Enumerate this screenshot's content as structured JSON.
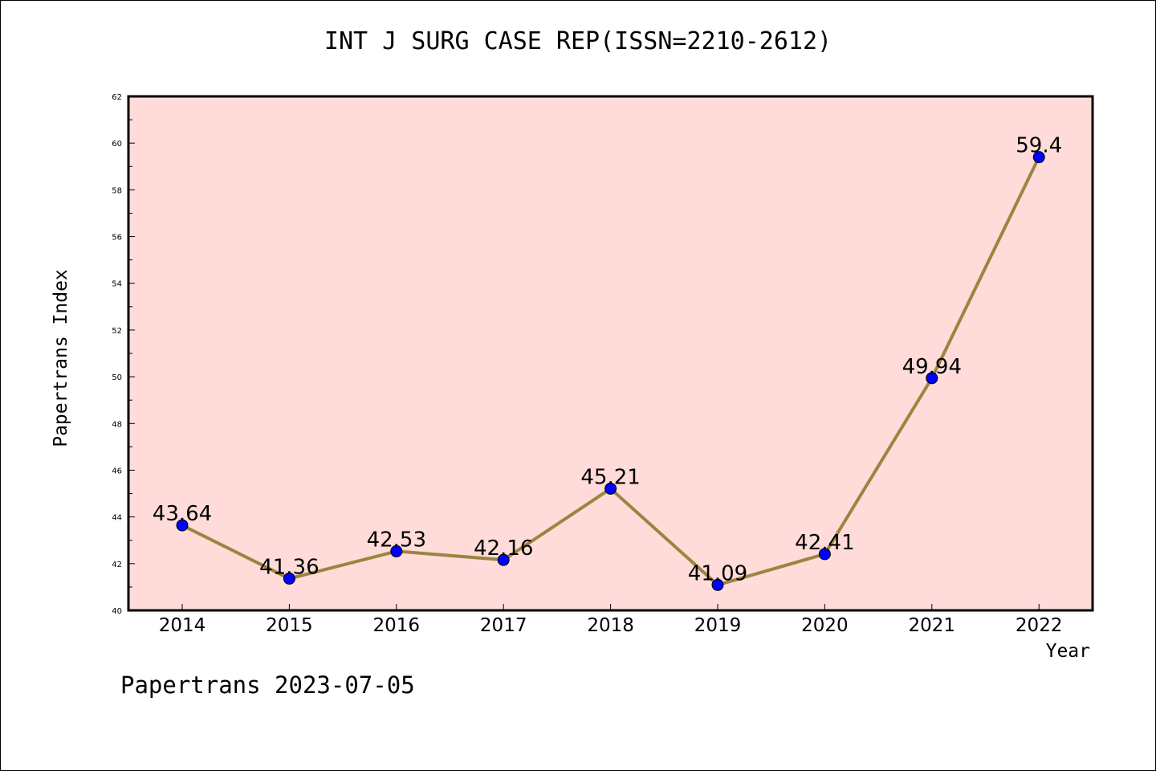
{
  "chart_data": {
    "type": "line",
    "title": "INT J SURG CASE REP(ISSN=2210-2612)",
    "xlabel": "Year",
    "ylabel": "Papertrans Index",
    "x": [
      "2014",
      "2015",
      "2016",
      "2017",
      "2018",
      "2019",
      "2020",
      "2021",
      "2022"
    ],
    "series": [
      {
        "values": [
          43.64,
          41.36,
          42.53,
          42.16,
          45.21,
          41.09,
          42.41,
          49.94,
          59.4
        ],
        "labels": [
          "43.64",
          "41.36",
          "42.53",
          "42.16",
          "45.21",
          "41.09",
          "42.41",
          "49.94",
          "59.4"
        ]
      }
    ],
    "ylim": [
      40,
      62
    ],
    "yticks": [
      40,
      42,
      44,
      46,
      48,
      50,
      52,
      54,
      56,
      58,
      60,
      62
    ],
    "grid": false,
    "colors": {
      "plot_background": "#ffdcd9",
      "line": "#9b8540",
      "marker": "#0000ff"
    }
  },
  "footer": "Papertrans 2023-07-05"
}
